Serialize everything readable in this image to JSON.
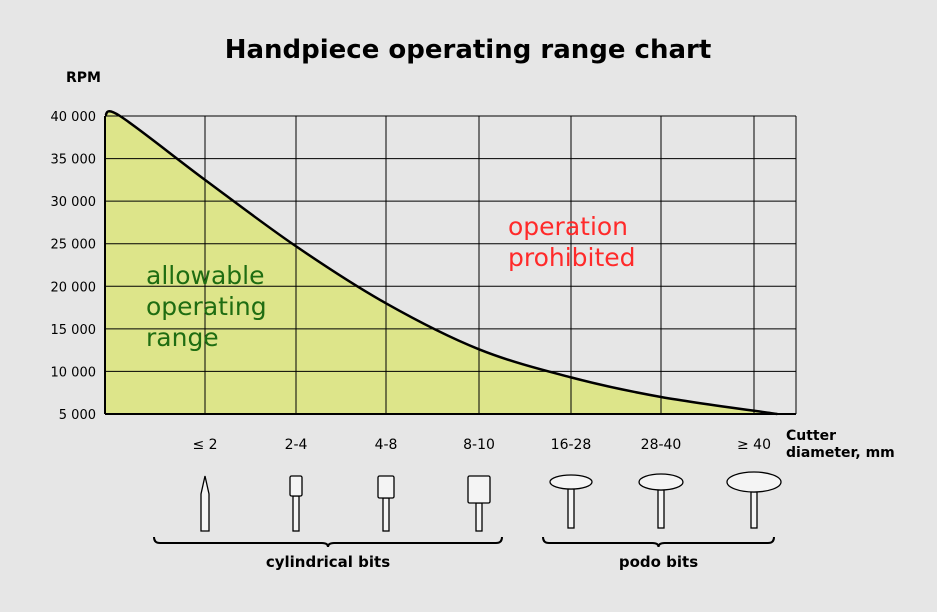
{
  "chart_data": {
    "type": "area",
    "title": "Handpiece operating range chart",
    "ylabel": "RPM",
    "xlabel_line1": "Cutter",
    "xlabel_line2": "diameter, mm",
    "categories": [
      "≤ 2",
      "2-4",
      "4-8",
      "8-10",
      "16-28",
      "28-40",
      "≥ 40"
    ],
    "y_ticks": [
      {
        "value": 40000,
        "label": "40 000"
      },
      {
        "value": 35000,
        "label": "35 000"
      },
      {
        "value": 30000,
        "label": "30 000"
      },
      {
        "value": 25000,
        "label": "25 000"
      },
      {
        "value": 20000,
        "label": "20 000"
      },
      {
        "value": 15000,
        "label": "15 000"
      },
      {
        "value": 10000,
        "label": "10 000"
      },
      {
        "value": 5000,
        "label": "5 000"
      }
    ],
    "ylim": [
      5000,
      40000
    ],
    "series": [
      {
        "x": [
          0,
          0.15,
          1,
          2,
          3,
          4,
          5,
          6,
          7.25
        ],
        "values": [
          40000,
          40000,
          32500,
          24700,
          18000,
          12600,
          9300,
          7000,
          5000
        ]
      }
    ],
    "grid": true,
    "region_allowed": [
      "allowable",
      "operating",
      "range"
    ],
    "region_prohibited": [
      "operation",
      "prohibited"
    ],
    "groups": [
      {
        "label": "cylindrical bits",
        "categories": [
          "≤ 2",
          "2-4",
          "4-8",
          "8-10"
        ]
      },
      {
        "label": "podo bits",
        "categories": [
          "16-28",
          "28-40",
          "≥ 40"
        ]
      }
    ],
    "colors": {
      "background": "#e6e6e6",
      "fill": "#dde58a",
      "grid": "#000000",
      "curve": "#000000",
      "allowed_text": "#1f6d12",
      "prohibited_text": "#ff2a2a",
      "bit_fill": "#f4f4f4"
    }
  }
}
